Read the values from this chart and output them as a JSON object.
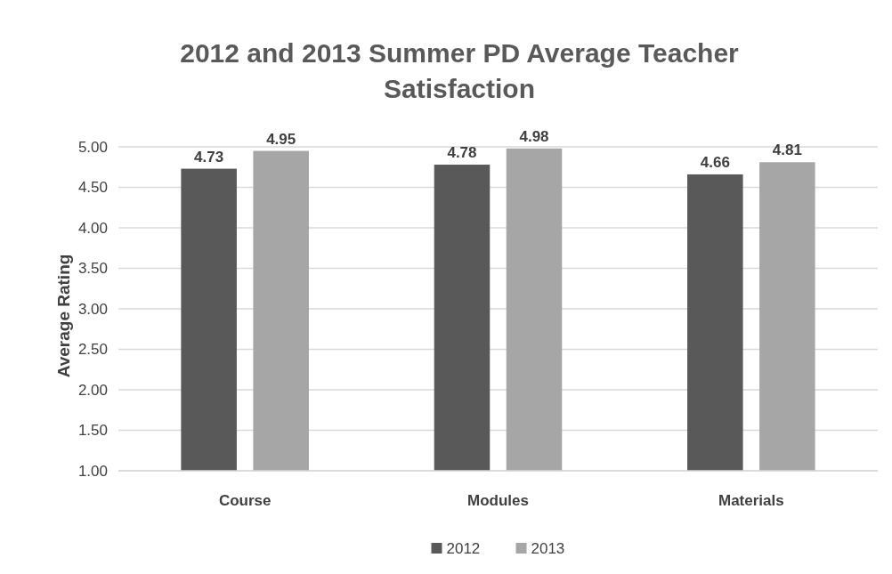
{
  "chart_data": {
    "type": "bar",
    "title": "2012 and 2013 Summer PD Average Teacher Satisfaction",
    "ylabel": "Average Rating",
    "categories": [
      "Course",
      "Modules",
      "Materials"
    ],
    "series": [
      {
        "name": "2012",
        "color": "#595959",
        "values": [
          4.73,
          4.78,
          4.66
        ]
      },
      {
        "name": "2013",
        "color": "#a6a6a6",
        "values": [
          4.95,
          4.98,
          4.81
        ]
      }
    ],
    "ylim": [
      1,
      5
    ],
    "yticks": [
      {
        "value": 1,
        "label": "1.00"
      },
      {
        "value": 1.5,
        "label": "1.50"
      },
      {
        "value": 2,
        "label": "2.00"
      },
      {
        "value": 2.5,
        "label": "2.50"
      },
      {
        "value": 3,
        "label": "3.00"
      },
      {
        "value": 3.5,
        "label": "3.50"
      },
      {
        "value": 4,
        "label": "4.00"
      },
      {
        "value": 4.5,
        "label": "4.50"
      },
      {
        "value": 5,
        "label": "5.00"
      }
    ],
    "grid": "y",
    "legend": "bottom",
    "data_labels": true
  }
}
